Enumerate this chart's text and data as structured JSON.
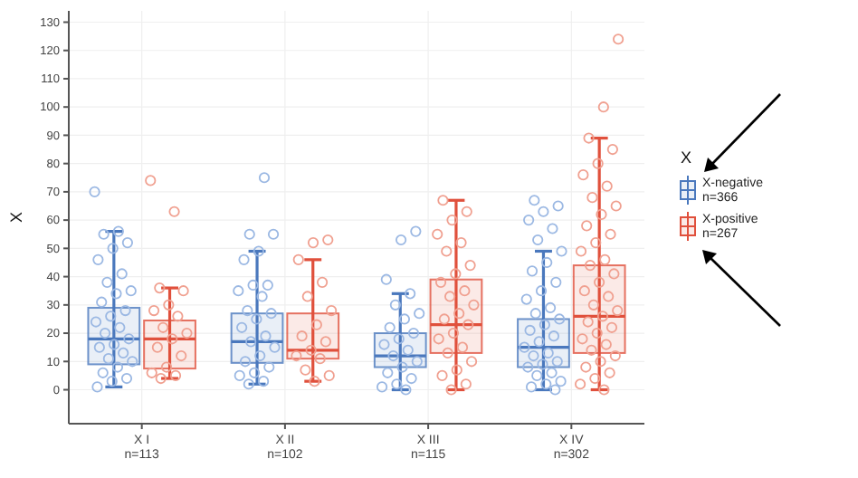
{
  "chart_data": {
    "type": "box",
    "ylabel": "X",
    "legend_title": "X",
    "legend": "right",
    "grid": true,
    "marker": "circle",
    "categories": [
      "X I\nn=113",
      "X II\nn=102",
      "X III\nn=115",
      "X IV\nn=302"
    ],
    "ylim": [
      -12,
      134
    ],
    "yticks": [
      0,
      10,
      20,
      30,
      40,
      50,
      60,
      70,
      80,
      90,
      100,
      110,
      120,
      130
    ],
    "series": [
      {
        "name": "X-negative\nn=366",
        "color": "#4a78bd",
        "boxes": [
          {
            "low": 1,
            "q1": 9,
            "median": 18,
            "q3": 29,
            "high": 56
          },
          {
            "low": 2,
            "q1": 9.5,
            "median": 17,
            "q3": 27,
            "high": 49
          },
          {
            "low": 0,
            "q1": 8,
            "median": 12,
            "q3": 20,
            "high": 34
          },
          {
            "low": 0,
            "q1": 8,
            "median": 15,
            "q3": 25,
            "high": 49
          }
        ]
      },
      {
        "name": "X-positive\nn=267",
        "color": "#e0503c",
        "boxes": [
          {
            "low": 4,
            "q1": 7.5,
            "median": 18,
            "q3": 24.5,
            "high": 36
          },
          {
            "low": 3,
            "q1": 11,
            "median": 14,
            "q3": 27,
            "high": 46
          },
          {
            "low": 0,
            "q1": 13,
            "median": 23,
            "q3": 39,
            "high": 67
          },
          {
            "low": 0,
            "q1": 13,
            "median": 26,
            "q3": 44,
            "high": 89
          }
        ]
      },
      {
        "type": "scatter",
        "color": "#9bb8e3",
        "x": [
          "X I\nn=113",
          "X I\nn=113",
          "X I\nn=113",
          "X I\nn=113",
          "X I\nn=113",
          "X I\nn=113",
          "X I\nn=113",
          "X I\nn=113",
          "X I\nn=113",
          "X I\nn=113",
          "X I\nn=113",
          "X I\nn=113",
          "X I\nn=113",
          "X I\nn=113",
          "X I\nn=113",
          "X I\nn=113",
          "X I\nn=113",
          "X I\nn=113",
          "X I\nn=113",
          "X I\nn=113",
          "X I\nn=113",
          "X I\nn=113",
          "X I\nn=113",
          "X I\nn=113",
          "X I\nn=113",
          "X I\nn=113",
          "X I\nn=113",
          "X II\nn=102",
          "X II\nn=102",
          "X II\nn=102",
          "X II\nn=102",
          "X II\nn=102",
          "X II\nn=102",
          "X II\nn=102",
          "X II\nn=102",
          "X II\nn=102",
          "X II\nn=102",
          "X II\nn=102",
          "X II\nn=102",
          "X II\nn=102",
          "X II\nn=102",
          "X II\nn=102",
          "X II\nn=102",
          "X II\nn=102",
          "X II\nn=102",
          "X II\nn=102",
          "X II\nn=102",
          "X II\nn=102",
          "X II\nn=102",
          "X II\nn=102",
          "X III\nn=115",
          "X III\nn=115",
          "X III\nn=115",
          "X III\nn=115",
          "X III\nn=115",
          "X III\nn=115",
          "X III\nn=115",
          "X III\nn=115",
          "X III\nn=115",
          "X III\nn=115",
          "X III\nn=115",
          "X III\nn=115",
          "X III\nn=115",
          "X III\nn=115",
          "X III\nn=115",
          "X III\nn=115",
          "X III\nn=115",
          "X III\nn=115",
          "X III\nn=115",
          "X III\nn=115",
          "X IV\nn=302",
          "X IV\nn=302",
          "X IV\nn=302",
          "X IV\nn=302",
          "X IV\nn=302",
          "X IV\nn=302",
          "X IV\nn=302",
          "X IV\nn=302",
          "X IV\nn=302",
          "X IV\nn=302",
          "X IV\nn=302",
          "X IV\nn=302",
          "X IV\nn=302",
          "X IV\nn=302",
          "X IV\nn=302",
          "X IV\nn=302",
          "X IV\nn=302",
          "X IV\nn=302",
          "X IV\nn=302",
          "X IV\nn=302",
          "X IV\nn=302",
          "X IV\nn=302",
          "X IV\nn=302",
          "X IV\nn=302",
          "X IV\nn=302",
          "X IV\nn=302",
          "X IV\nn=302",
          "X IV\nn=302",
          "X IV\nn=302",
          "X IV\nn=302",
          "X IV\nn=302"
        ],
        "values": [
          70,
          56,
          55,
          52,
          50,
          46,
          41,
          38,
          35,
          34,
          31,
          28,
          26,
          24,
          22,
          20,
          18,
          16,
          15,
          13,
          11,
          10,
          8,
          6,
          4,
          3,
          1,
          75,
          55,
          55,
          49,
          46,
          37,
          37,
          35,
          33,
          28,
          27,
          25,
          22,
          19,
          17,
          15,
          12,
          10,
          8,
          6,
          5,
          3,
          2,
          56,
          53,
          39,
          34,
          30,
          27,
          25,
          22,
          20,
          18,
          16,
          14,
          12,
          10,
          8,
          6,
          4,
          2,
          1,
          0,
          67,
          65,
          63,
          60,
          57,
          53,
          49,
          45,
          42,
          38,
          35,
          32,
          29,
          27,
          25,
          23,
          21,
          19,
          17,
          15,
          13,
          12,
          10,
          9,
          8,
          6,
          5,
          3,
          2,
          1,
          0
        ]
      },
      {
        "type": "scatter",
        "color": "#f0a090",
        "x": [
          "X I\nn=113",
          "X I\nn=113",
          "X I\nn=113",
          "X I\nn=113",
          "X I\nn=113",
          "X I\nn=113",
          "X I\nn=113",
          "X I\nn=113",
          "X I\nn=113",
          "X I\nn=113",
          "X I\nn=113",
          "X I\nn=113",
          "X I\nn=113",
          "X I\nn=113",
          "X I\nn=113",
          "X I\nn=113",
          "X II\nn=102",
          "X II\nn=102",
          "X II\nn=102",
          "X II\nn=102",
          "X II\nn=102",
          "X II\nn=102",
          "X II\nn=102",
          "X II\nn=102",
          "X II\nn=102",
          "X II\nn=102",
          "X II\nn=102",
          "X II\nn=102",
          "X II\nn=102",
          "X II\nn=102",
          "X II\nn=102",
          "X III\nn=115",
          "X III\nn=115",
          "X III\nn=115",
          "X III\nn=115",
          "X III\nn=115",
          "X III\nn=115",
          "X III\nn=115",
          "X III\nn=115",
          "X III\nn=115",
          "X III\nn=115",
          "X III\nn=115",
          "X III\nn=115",
          "X III\nn=115",
          "X III\nn=115",
          "X III\nn=115",
          "X III\nn=115",
          "X III\nn=115",
          "X III\nn=115",
          "X III\nn=115",
          "X III\nn=115",
          "X III\nn=115",
          "X III\nn=115",
          "X III\nn=115",
          "X III\nn=115",
          "X IV\nn=302",
          "X IV\nn=302",
          "X IV\nn=302",
          "X IV\nn=302",
          "X IV\nn=302",
          "X IV\nn=302",
          "X IV\nn=302",
          "X IV\nn=302",
          "X IV\nn=302",
          "X IV\nn=302",
          "X IV\nn=302",
          "X IV\nn=302",
          "X IV\nn=302",
          "X IV\nn=302",
          "X IV\nn=302",
          "X IV\nn=302",
          "X IV\nn=302",
          "X IV\nn=302",
          "X IV\nn=302",
          "X IV\nn=302",
          "X IV\nn=302",
          "X IV\nn=302",
          "X IV\nn=302",
          "X IV\nn=302",
          "X IV\nn=302",
          "X IV\nn=302",
          "X IV\nn=302",
          "X IV\nn=302",
          "X IV\nn=302",
          "X IV\nn=302",
          "X IV\nn=302",
          "X IV\nn=302",
          "X IV\nn=302",
          "X IV\nn=302",
          "X IV\nn=302",
          "X IV\nn=302"
        ],
        "values": [
          74,
          63,
          36,
          35,
          30,
          28,
          26,
          22,
          20,
          18,
          15,
          12,
          8,
          6,
          5,
          4,
          53,
          52,
          46,
          38,
          33,
          28,
          23,
          19,
          17,
          14,
          12,
          11,
          7,
          5,
          3,
          67,
          63,
          60,
          55,
          52,
          49,
          44,
          41,
          38,
          35,
          33,
          30,
          27,
          25,
          23,
          20,
          18,
          15,
          13,
          10,
          7,
          5,
          2,
          0,
          124,
          100,
          89,
          85,
          80,
          76,
          72,
          68,
          65,
          62,
          58,
          55,
          52,
          49,
          46,
          44,
          41,
          38,
          35,
          33,
          30,
          28,
          26,
          24,
          22,
          20,
          18,
          16,
          14,
          12,
          10,
          8,
          6,
          4,
          2,
          0
        ]
      }
    ]
  }
}
